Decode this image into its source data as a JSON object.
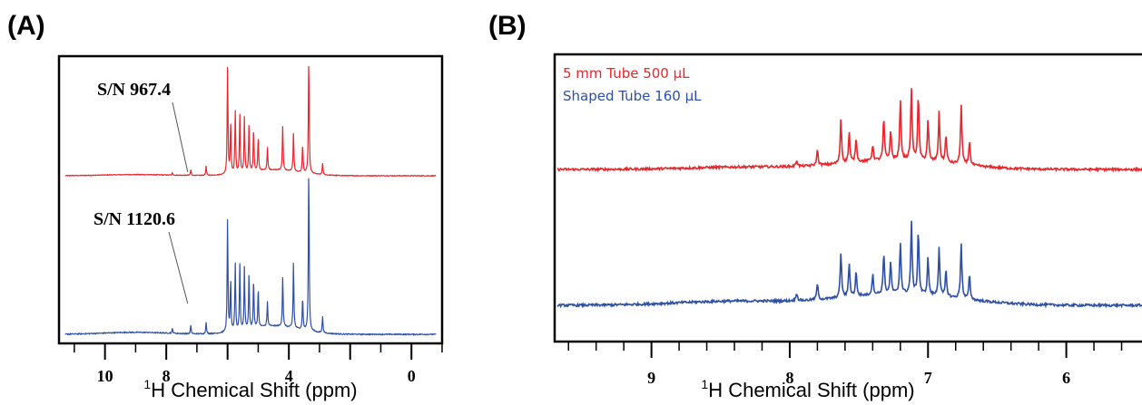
{
  "colors": {
    "red": "#e8262b",
    "blue": "#2d4fa6",
    "axis": "#000000"
  },
  "chart_data": [
    {
      "type": "line",
      "panel_label": "(A)",
      "xlabel_sup": "1",
      "xlabel_main": "H Chemical Shift (ppm)",
      "x_reversed": true,
      "xlim": [
        11.5,
        -1.0
      ],
      "xticks_labeled": [
        "10",
        "8",
        "4",
        "0"
      ],
      "xticks_labeled_values": [
        10,
        8,
        4,
        0
      ],
      "xticks_major_values": [
        10,
        8,
        6,
        4,
        2,
        0
      ],
      "xticks_minor_values": [
        11,
        9,
        7,
        5,
        3,
        1,
        -1
      ],
      "annotations": [
        {
          "text": "S/N 967.4",
          "series": "red",
          "points_to_x": 7.3
        },
        {
          "text": "S/N 1120.6",
          "series": "blue",
          "points_to_x": 7.3
        }
      ],
      "series": [
        {
          "color_key": "red",
          "peaks": [
            {
              "x": 6.0,
              "h": 0.95
            },
            {
              "x": 5.9,
              "h": 0.45
            },
            {
              "x": 5.75,
              "h": 0.55
            },
            {
              "x": 5.6,
              "h": 0.5
            },
            {
              "x": 5.45,
              "h": 0.48
            },
            {
              "x": 5.3,
              "h": 0.42
            },
            {
              "x": 5.15,
              "h": 0.38
            },
            {
              "x": 5.0,
              "h": 0.3
            },
            {
              "x": 4.7,
              "h": 0.2
            },
            {
              "x": 4.2,
              "h": 0.38
            },
            {
              "x": 3.85,
              "h": 0.33
            },
            {
              "x": 3.55,
              "h": 0.25
            },
            {
              "x": 3.35,
              "h": 1.0
            },
            {
              "x": 2.9,
              "h": 0.1
            },
            {
              "x": 7.2,
              "h": 0.05
            },
            {
              "x": 7.8,
              "h": 0.02
            },
            {
              "x": 6.7,
              "h": 0.08
            }
          ]
        },
        {
          "color_key": "blue",
          "peaks": [
            {
              "x": 6.0,
              "h": 0.7
            },
            {
              "x": 5.9,
              "h": 0.32
            },
            {
              "x": 5.75,
              "h": 0.42
            },
            {
              "x": 5.6,
              "h": 0.4
            },
            {
              "x": 5.45,
              "h": 0.38
            },
            {
              "x": 5.3,
              "h": 0.34
            },
            {
              "x": 5.15,
              "h": 0.3
            },
            {
              "x": 5.0,
              "h": 0.24
            },
            {
              "x": 4.7,
              "h": 0.15
            },
            {
              "x": 4.2,
              "h": 0.3
            },
            {
              "x": 3.85,
              "h": 0.4
            },
            {
              "x": 3.55,
              "h": 0.2
            },
            {
              "x": 3.35,
              "h": 1.0
            },
            {
              "x": 2.9,
              "h": 0.1
            },
            {
              "x": 7.2,
              "h": 0.05
            },
            {
              "x": 7.8,
              "h": 0.03
            },
            {
              "x": 6.7,
              "h": 0.07
            }
          ]
        }
      ]
    },
    {
      "type": "line",
      "panel_label": "(B)",
      "xlabel_sup": "1",
      "xlabel_main": "H Chemical Shift (ppm)",
      "x_reversed": true,
      "xlim": [
        9.7,
        5.4
      ],
      "xticks_labeled": [
        "9",
        "8",
        "7",
        "6"
      ],
      "xticks_labeled_values": [
        9,
        8,
        7,
        6
      ],
      "xticks_minor_values": [
        9.6,
        9.4,
        9.2,
        8.8,
        8.6,
        8.4,
        8.2,
        7.8,
        7.6,
        7.4,
        7.2,
        6.8,
        6.6,
        6.4,
        6.2,
        5.8,
        5.6,
        5.4
      ],
      "legend": [
        {
          "text": "5 mm Tube 500 µL",
          "color_key": "red"
        },
        {
          "text": "Shaped Tube 160 µL",
          "color_key": "blue"
        }
      ],
      "series": [
        {
          "color_key": "red",
          "peaks": [
            {
              "x": 7.95,
              "h": 0.08
            },
            {
              "x": 7.8,
              "h": 0.2
            },
            {
              "x": 7.63,
              "h": 0.55
            },
            {
              "x": 7.57,
              "h": 0.38
            },
            {
              "x": 7.52,
              "h": 0.3
            },
            {
              "x": 7.4,
              "h": 0.2
            },
            {
              "x": 7.32,
              "h": 0.52
            },
            {
              "x": 7.27,
              "h": 0.36
            },
            {
              "x": 7.2,
              "h": 0.72
            },
            {
              "x": 7.12,
              "h": 0.9
            },
            {
              "x": 7.07,
              "h": 0.8
            },
            {
              "x": 7.0,
              "h": 0.5
            },
            {
              "x": 6.92,
              "h": 0.62
            },
            {
              "x": 6.87,
              "h": 0.35
            },
            {
              "x": 6.76,
              "h": 0.75
            },
            {
              "x": 6.7,
              "h": 0.3
            }
          ]
        },
        {
          "color_key": "blue",
          "peaks": [
            {
              "x": 7.95,
              "h": 0.1
            },
            {
              "x": 7.8,
              "h": 0.2
            },
            {
              "x": 7.63,
              "h": 0.55
            },
            {
              "x": 7.57,
              "h": 0.42
            },
            {
              "x": 7.52,
              "h": 0.3
            },
            {
              "x": 7.4,
              "h": 0.25
            },
            {
              "x": 7.32,
              "h": 0.5
            },
            {
              "x": 7.27,
              "h": 0.38
            },
            {
              "x": 7.2,
              "h": 0.62
            },
            {
              "x": 7.12,
              "h": 0.88
            },
            {
              "x": 7.07,
              "h": 0.78
            },
            {
              "x": 7.0,
              "h": 0.45
            },
            {
              "x": 6.92,
              "h": 0.6
            },
            {
              "x": 6.87,
              "h": 0.32
            },
            {
              "x": 6.76,
              "h": 0.68
            },
            {
              "x": 6.7,
              "h": 0.3
            }
          ]
        }
      ]
    }
  ]
}
